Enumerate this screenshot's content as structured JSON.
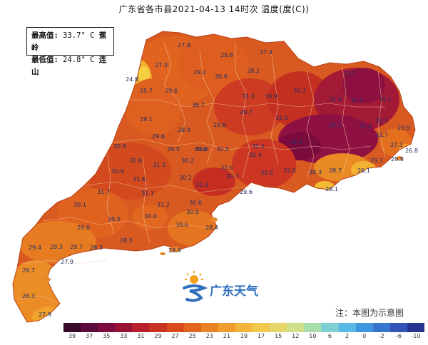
{
  "title": "广东省各市县2021-04-13 14时次 温度(度(C))",
  "stats": {
    "max_label": "最高值:",
    "max_value": "33.7° C",
    "max_place": "蕉岭",
    "min_label": "最低值:",
    "min_value": "24.8° C",
    "min_place": "连山"
  },
  "region": {
    "name": "广东",
    "outline_color": "#d3552a"
  },
  "stations": [
    {
      "v": "27.8"
    },
    {
      "v": "29.6"
    },
    {
      "v": "27.4"
    },
    {
      "v": "27.3"
    },
    {
      "v": "29.2"
    },
    {
      "v": "30.6"
    },
    {
      "v": "28.2"
    },
    {
      "v": "24.8"
    },
    {
      "v": "25.7"
    },
    {
      "v": "29.6"
    },
    {
      "v": "31.3"
    },
    {
      "v": "30.9"
    },
    {
      "v": "30.3"
    },
    {
      "v": "33.1"
    },
    {
      "v": "32.9"
    },
    {
      "v": "30.7"
    },
    {
      "v": "29.7"
    },
    {
      "v": "32.7"
    },
    {
      "v": "33.1"
    },
    {
      "v": "32.1"
    },
    {
      "v": "29.1"
    },
    {
      "v": "28.9"
    },
    {
      "v": "29.6"
    },
    {
      "v": "31.5"
    },
    {
      "v": "33.1"
    },
    {
      "v": "33.3"
    },
    {
      "v": "33.7"
    },
    {
      "v": "29.9"
    },
    {
      "v": "29.6"
    },
    {
      "v": "30.6"
    },
    {
      "v": "32.0"
    },
    {
      "v": "33.4"
    },
    {
      "v": "27.1"
    },
    {
      "v": "26.8"
    },
    {
      "v": "30.8"
    },
    {
      "v": "29.5"
    },
    {
      "v": "30.8"
    },
    {
      "v": "30.5"
    },
    {
      "v": "31.4"
    },
    {
      "v": "32.6"
    },
    {
      "v": "31.6"
    },
    {
      "v": "31.3"
    },
    {
      "v": "30.2"
    },
    {
      "v": "32.6"
    },
    {
      "v": "32.0"
    },
    {
      "v": "30.3"
    },
    {
      "v": "28.7"
    },
    {
      "v": "26.1"
    },
    {
      "v": "29.7"
    },
    {
      "v": "29.8"
    },
    {
      "v": "30.9"
    },
    {
      "v": "31.6"
    },
    {
      "v": "30.2"
    },
    {
      "v": "30.7"
    },
    {
      "v": "31.8"
    },
    {
      "v": "31.7"
    },
    {
      "v": "31.1"
    },
    {
      "v": "31.2"
    },
    {
      "v": "30.6"
    },
    {
      "v": "29.6"
    },
    {
      "v": "26.1"
    },
    {
      "v": "30.1"
    },
    {
      "v": "30.5"
    },
    {
      "v": "30.5"
    },
    {
      "v": "29.8"
    },
    {
      "v": "30.0"
    },
    {
      "v": "30.6"
    },
    {
      "v": "28.4"
    },
    {
      "v": "29.4"
    },
    {
      "v": "29.3"
    },
    {
      "v": "29.7"
    },
    {
      "v": "28.3"
    },
    {
      "v": "28.5"
    },
    {
      "v": "28.9"
    },
    {
      "v": "29.7"
    },
    {
      "v": "27.9"
    },
    {
      "v": "28.3"
    },
    {
      "v": "27.9"
    }
  ],
  "logo": {
    "text": "广东天气",
    "icon": "sun-and-weather-swirl-icon",
    "color": "#2e6fbe"
  },
  "note": "注：本图为示意图",
  "legend": {
    "labels": [
      "39",
      "37",
      "35",
      "33",
      "31",
      "29",
      "27",
      "25",
      "23",
      "21",
      "19",
      "17",
      "15",
      "12",
      "10",
      "6",
      "2",
      "0",
      "-2",
      "-6",
      "-10"
    ],
    "colors": [
      "#3a0a2a",
      "#5c0c3c",
      "#7d0d40",
      "#9b1237",
      "#b51f2e",
      "#c93222",
      "#d74a1c",
      "#e0651e",
      "#e88224",
      "#ef9d2e",
      "#f3b53a",
      "#f2c94c",
      "#e6d66a",
      "#cfe08a",
      "#a8dca8",
      "#7dcfd1",
      "#58b8e6",
      "#3f96e0",
      "#3776cf",
      "#3055b6",
      "#27348f"
    ]
  }
}
